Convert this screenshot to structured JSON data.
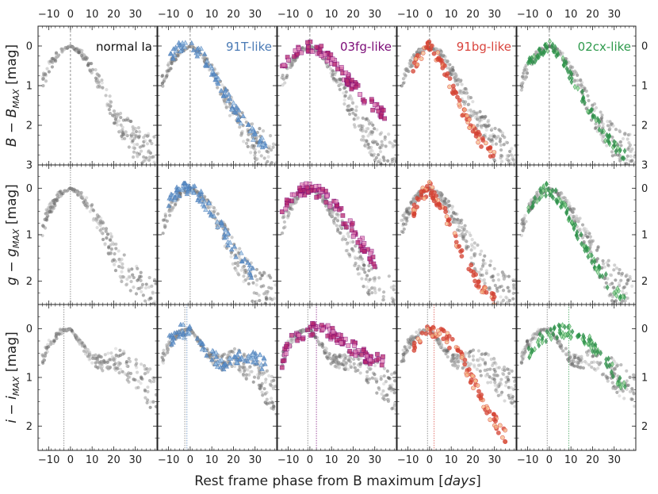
{
  "chart_data": {
    "type": "scatter",
    "layout": "grid 3 rows x 5 columns, shared axes",
    "xlabel_main": "Rest frame phase from B maximum [",
    "xlabel_unit": "days",
    "xlabel_close": "]",
    "xlim": [
      -15,
      40
    ],
    "xticks": [
      -10,
      0,
      10,
      20,
      30
    ],
    "tick_labels": [
      "−10",
      "0",
      "10",
      "20",
      "30"
    ],
    "rows": [
      {
        "band": "B",
        "ylabel_main": "B − B",
        "ylabel_sub": "MAX",
        "ylabel_unit": " [mag]",
        "ylim": [
          3,
          -0.5
        ],
        "yticks": [
          0,
          1,
          2,
          3
        ],
        "ytick_labels": [
          "0",
          "1",
          "2",
          "3"
        ]
      },
      {
        "band": "g",
        "ylabel_main": "g − g",
        "ylabel_sub": "MAX",
        "ylabel_unit": " [mag]",
        "ylim": [
          2.5,
          -0.5
        ],
        "yticks": [
          0,
          1,
          2
        ],
        "ytick_labels": [
          "0",
          "1",
          "2"
        ]
      },
      {
        "band": "i",
        "ylabel_main": "i − i",
        "ylabel_sub": "MAX",
        "ylabel_unit": " [mag]",
        "ylim": [
          2.5,
          -0.5
        ],
        "yticks": [
          0,
          1,
          2
        ],
        "ytick_labels": [
          "0",
          "1",
          "2"
        ]
      }
    ],
    "columns": [
      {
        "label": "normal Ia",
        "color": "#111111",
        "marker": "hex",
        "fill": "#555555"
      },
      {
        "label": "91T-like",
        "color": "#4a7ab5",
        "marker": "triangle",
        "fill": "#5b8fc7"
      },
      {
        "label": "03fg-like",
        "color": "#7b0b77",
        "marker": "square",
        "fill": "#b8286e"
      },
      {
        "label": "91bg-like",
        "color": "#d9453e",
        "marker": "circle",
        "fill": "#d1412f"
      },
      {
        "label": "02cx-like",
        "color": "#2e9a4c",
        "marker": "diamond",
        "fill": "#2f8c4a"
      }
    ],
    "reference_population": "normal Ia light curves (grey) shown in every panel",
    "peak_lines": {
      "B": [
        0,
        0,
        0,
        0,
        0
      ],
      "g": [
        0,
        0,
        0,
        0,
        0
      ],
      "i": [
        [
          -3
        ],
        [
          -2.5,
          -1.5
        ],
        [
          -1,
          3
        ],
        [
          -1,
          2
        ],
        [
          -1,
          9
        ]
      ]
    },
    "templates": {
      "normal_B": {
        "x": [
          -13,
          -10,
          -5,
          0,
          5,
          10,
          15,
          20,
          25,
          30,
          35,
          40
        ],
        "y": [
          0.9,
          0.5,
          0.12,
          0,
          0.15,
          0.55,
          1.05,
          1.6,
          2.0,
          2.3,
          2.55,
          2.7
        ]
      },
      "normal_g": {
        "x": [
          -13,
          -10,
          -5,
          0,
          5,
          10,
          15,
          20,
          25,
          30,
          35,
          40
        ],
        "y": [
          0.8,
          0.45,
          0.1,
          0,
          0.12,
          0.45,
          0.85,
          1.3,
          1.65,
          1.95,
          2.2,
          2.35
        ]
      },
      "normal_i": {
        "x": [
          -13,
          -10,
          -5,
          0,
          5,
          10,
          15,
          20,
          25,
          30,
          35,
          40
        ],
        "y": [
          0.6,
          0.3,
          0.05,
          0,
          0.3,
          0.6,
          0.65,
          0.55,
          0.65,
          0.85,
          1.05,
          1.2
        ]
      },
      "91T_B": {
        "x": [
          -10,
          -5,
          0,
          5,
          10,
          15,
          20,
          25,
          30,
          35
        ],
        "y": [
          0.3,
          0.05,
          0,
          0.2,
          0.6,
          1.1,
          1.55,
          1.95,
          2.3,
          2.5
        ]
      },
      "91T_g": {
        "x": [
          -10,
          -5,
          0,
          5,
          10,
          15,
          20,
          25,
          30
        ],
        "y": [
          0.3,
          0.05,
          0,
          0.2,
          0.5,
          0.9,
          1.3,
          1.6,
          1.9
        ]
      },
      "91T_i": {
        "x": [
          -10,
          -5,
          0,
          5,
          10,
          15,
          20,
          25,
          30,
          35
        ],
        "y": [
          0.25,
          0.05,
          0.05,
          0.3,
          0.55,
          0.75,
          0.65,
          0.55,
          0.6,
          0.75
        ]
      },
      "03fg_B": {
        "x": [
          -13,
          -10,
          -5,
          0,
          5,
          10,
          15,
          20,
          25,
          30,
          35
        ],
        "y": [
          0.6,
          0.3,
          0.05,
          0,
          0.1,
          0.35,
          0.7,
          1.0,
          1.3,
          1.55,
          1.75
        ]
      },
      "03fg_g": {
        "x": [
          -13,
          -10,
          -5,
          0,
          5,
          10,
          15,
          20,
          25,
          30
        ],
        "y": [
          0.55,
          0.25,
          0.05,
          0,
          0.1,
          0.3,
          0.6,
          0.9,
          1.25,
          1.6
        ]
      },
      "03fg_i": {
        "x": [
          -13,
          -10,
          -5,
          0,
          5,
          10,
          15,
          20,
          25,
          30,
          35
        ],
        "y": [
          0.7,
          0.35,
          0.1,
          0.02,
          0.0,
          0.1,
          0.25,
          0.4,
          0.55,
          0.6,
          0.7
        ]
      },
      "91bg_B": {
        "x": [
          -8,
          -5,
          0,
          5,
          10,
          15,
          20,
          25,
          30
        ],
        "y": [
          0.7,
          0.25,
          0,
          0.4,
          1.0,
          1.6,
          2.1,
          2.5,
          2.8
        ]
      },
      "91bg_g": {
        "x": [
          -8,
          -5,
          0,
          5,
          10,
          15,
          20,
          25,
          30
        ],
        "y": [
          0.6,
          0.2,
          0,
          0.35,
          0.85,
          1.4,
          1.85,
          2.2,
          2.4
        ]
      },
      "91bg_i": {
        "x": [
          -8,
          -5,
          0,
          5,
          10,
          15,
          20,
          25,
          30,
          35
        ],
        "y": [
          0.4,
          0.15,
          0.05,
          0.1,
          0.3,
          0.65,
          1.1,
          1.5,
          1.9,
          2.2
        ]
      },
      "02cx_B": {
        "x": [
          -10,
          -5,
          0,
          5,
          10,
          15,
          20,
          25,
          30,
          35
        ],
        "y": [
          0.5,
          0.15,
          0,
          0.25,
          0.75,
          1.25,
          1.75,
          2.2,
          2.55,
          2.75
        ]
      },
      "02cx_g": {
        "x": [
          -10,
          -5,
          0,
          5,
          10,
          15,
          20,
          25,
          30,
          35
        ],
        "y": [
          0.45,
          0.1,
          0,
          0.25,
          0.7,
          1.15,
          1.55,
          1.9,
          2.2,
          2.4
        ]
      },
      "02cx_i": {
        "x": [
          -10,
          -5,
          0,
          5,
          10,
          15,
          20,
          25,
          30,
          35
        ],
        "y": [
          0.5,
          0.25,
          0.1,
          0.05,
          0.05,
          0.15,
          0.35,
          0.6,
          0.9,
          1.2
        ]
      }
    }
  }
}
